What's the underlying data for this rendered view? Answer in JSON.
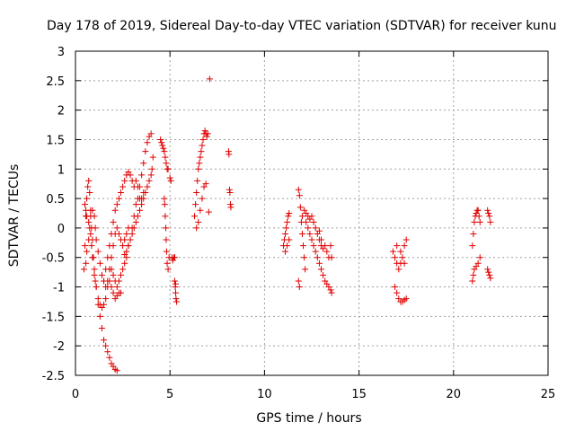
{
  "chart_data": {
    "type": "scatter",
    "title": "Day 178 of 2019, Sidereal Day-to-day VTEC variation (SDTVAR) for receiver kunu",
    "xlabel": "GPS time / hours",
    "ylabel": "SDTVAR / TECUs",
    "xlim": [
      0,
      25
    ],
    "ylim": [
      -2.5,
      3
    ],
    "grid": true,
    "x_ticks": [
      0,
      5,
      10,
      15,
      20,
      25
    ],
    "x_tick_labels": [
      "0",
      "5",
      "10",
      "15",
      "20",
      "25"
    ],
    "y_ticks": [
      -2.5,
      -2,
      -1.5,
      -1,
      -0.5,
      0,
      0.5,
      1,
      1.5,
      2,
      2.5,
      3
    ],
    "y_tick_labels": [
      "-2.5",
      "-2",
      "-1.5",
      "-1",
      "-0.5",
      "0",
      "0.5",
      "1",
      "1.5",
      "2",
      "2.5",
      "3"
    ],
    "marker": "+",
    "marker_color": "#e00000",
    "segments": [
      {
        "name": "arc-a",
        "points": [
          [
            0.45,
            -0.7
          ],
          [
            0.5,
            -0.3
          ],
          [
            0.55,
            0.2
          ],
          [
            0.6,
            0.5
          ],
          [
            0.65,
            0.7
          ],
          [
            0.7,
            0.8
          ],
          [
            0.75,
            0.6
          ],
          [
            0.8,
            0.3
          ],
          [
            0.85,
            0.0
          ],
          [
            0.9,
            -0.2
          ],
          [
            0.95,
            -0.5
          ],
          [
            1.0,
            -0.7
          ],
          [
            1.05,
            -0.9
          ],
          [
            1.1,
            -1.0
          ],
          [
            1.2,
            -1.2
          ],
          [
            1.3,
            -1.3
          ],
          [
            1.4,
            -1.35
          ],
          [
            1.5,
            -1.3
          ],
          [
            1.6,
            -1.2
          ],
          [
            1.7,
            -1.0
          ],
          [
            1.8,
            -0.9
          ],
          [
            1.9,
            -1.0
          ],
          [
            2.0,
            -1.1
          ],
          [
            2.1,
            -1.2
          ],
          [
            2.2,
            -1.15
          ],
          [
            2.3,
            -1.1
          ],
          [
            2.4,
            -1.1
          ]
        ]
      },
      {
        "name": "arc-b",
        "points": [
          [
            0.5,
            0.4
          ],
          [
            0.55,
            0.3
          ],
          [
            0.6,
            0.2
          ],
          [
            0.7,
            0.1
          ],
          [
            0.8,
            0.2
          ],
          [
            0.9,
            0.3
          ],
          [
            1.0,
            0.2
          ],
          [
            1.05,
            0.0
          ],
          [
            1.1,
            -0.2
          ],
          [
            1.2,
            -0.4
          ],
          [
            1.3,
            -0.6
          ],
          [
            1.4,
            -0.8
          ],
          [
            1.5,
            -0.9
          ],
          [
            1.6,
            -1.0
          ],
          [
            1.7,
            -0.9
          ],
          [
            1.8,
            -0.7
          ],
          [
            1.9,
            -0.5
          ],
          [
            2.0,
            -0.3
          ],
          [
            2.1,
            -0.1
          ],
          [
            2.2,
            0.0
          ],
          [
            2.3,
            -0.1
          ],
          [
            2.4,
            -0.2
          ],
          [
            2.5,
            -0.3
          ],
          [
            2.6,
            -0.2
          ],
          [
            2.7,
            -0.1
          ],
          [
            2.8,
            0.0
          ]
        ]
      },
      {
        "name": "arc-c",
        "points": [
          [
            0.55,
            -0.6
          ],
          [
            0.6,
            -0.4
          ],
          [
            0.7,
            -0.2
          ],
          [
            0.75,
            0.0
          ],
          [
            0.8,
            -0.1
          ],
          [
            0.85,
            -0.3
          ],
          [
            0.9,
            -0.5
          ],
          [
            1.0,
            -0.8
          ],
          [
            1.1,
            -1.0
          ],
          [
            1.2,
            -1.3
          ],
          [
            1.3,
            -1.5
          ],
          [
            1.4,
            -1.7
          ],
          [
            1.5,
            -1.9
          ],
          [
            1.6,
            -2.0
          ],
          [
            1.7,
            -2.1
          ],
          [
            1.8,
            -2.2
          ],
          [
            1.9,
            -2.3
          ],
          [
            2.0,
            -2.35
          ],
          [
            2.1,
            -2.4
          ],
          [
            2.2,
            -2.42
          ]
        ]
      },
      {
        "name": "arc-d",
        "points": [
          [
            1.5,
            -0.9
          ],
          [
            1.6,
            -0.7
          ],
          [
            1.7,
            -0.5
          ],
          [
            1.8,
            -0.3
          ],
          [
            1.9,
            -0.1
          ],
          [
            2.0,
            0.1
          ],
          [
            2.1,
            0.3
          ],
          [
            2.2,
            0.4
          ],
          [
            2.3,
            0.5
          ],
          [
            2.4,
            0.6
          ],
          [
            2.5,
            0.7
          ],
          [
            2.6,
            0.8
          ],
          [
            2.7,
            0.9
          ],
          [
            2.8,
            0.95
          ],
          [
            2.9,
            0.9
          ],
          [
            3.0,
            0.8
          ],
          [
            3.1,
            0.7
          ],
          [
            3.2,
            0.8
          ],
          [
            3.3,
            0.7
          ],
          [
            3.4,
            0.5
          ],
          [
            3.5,
            0.5
          ],
          [
            3.6,
            0.6
          ]
        ]
      },
      {
        "name": "arc-e",
        "points": [
          [
            1.9,
            -0.7
          ],
          [
            2.0,
            -0.8
          ],
          [
            2.1,
            -0.9
          ],
          [
            2.2,
            -1.0
          ],
          [
            2.3,
            -0.9
          ],
          [
            2.4,
            -0.8
          ],
          [
            2.5,
            -0.7
          ],
          [
            2.6,
            -0.6
          ],
          [
            2.7,
            -0.5
          ],
          [
            2.8,
            -0.3
          ],
          [
            2.9,
            -0.2
          ],
          [
            3.0,
            0.0
          ],
          [
            3.1,
            0.2
          ],
          [
            3.2,
            0.4
          ],
          [
            3.3,
            0.5
          ],
          [
            3.4,
            0.7
          ],
          [
            3.5,
            0.9
          ],
          [
            3.6,
            1.1
          ],
          [
            3.7,
            1.3
          ],
          [
            3.8,
            1.45
          ],
          [
            3.9,
            1.55
          ],
          [
            4.0,
            1.6
          ]
        ]
      },
      {
        "name": "arc-f",
        "points": [
          [
            2.6,
            -0.45
          ],
          [
            2.7,
            -0.4
          ],
          [
            2.8,
            -0.3
          ],
          [
            2.9,
            -0.2
          ],
          [
            3.0,
            -0.1
          ],
          [
            3.1,
            0.0
          ],
          [
            3.2,
            0.1
          ],
          [
            3.3,
            0.2
          ],
          [
            3.4,
            0.3
          ],
          [
            3.5,
            0.4
          ],
          [
            3.6,
            0.5
          ],
          [
            3.7,
            0.6
          ],
          [
            3.8,
            0.7
          ],
          [
            3.9,
            0.8
          ],
          [
            4.0,
            0.9
          ],
          [
            4.05,
            1.0
          ],
          [
            4.1,
            1.2
          ]
        ]
      },
      {
        "name": "arc-g",
        "points": [
          [
            4.5,
            1.5
          ],
          [
            4.55,
            1.45
          ],
          [
            4.6,
            1.4
          ],
          [
            4.65,
            1.35
          ],
          [
            4.7,
            1.3
          ],
          [
            4.75,
            1.2
          ],
          [
            4.8,
            1.1
          ],
          [
            4.85,
            1.0
          ],
          [
            4.9,
            1.0
          ],
          [
            4.7,
            0.5
          ],
          [
            4.72,
            0.4
          ],
          [
            4.75,
            0.2
          ],
          [
            4.78,
            0.0
          ],
          [
            4.8,
            -0.2
          ],
          [
            4.82,
            -0.4
          ],
          [
            4.85,
            -0.6
          ],
          [
            4.9,
            -0.7
          ],
          [
            4.95,
            -0.5
          ]
        ]
      },
      {
        "name": "arc-h",
        "points": [
          [
            5.0,
            0.85
          ],
          [
            5.05,
            0.8
          ],
          [
            5.1,
            -0.5
          ],
          [
            5.15,
            -0.55
          ],
          [
            5.2,
            -0.5
          ],
          [
            5.25,
            -0.9
          ],
          [
            5.28,
            -1.0
          ],
          [
            5.3,
            -1.1
          ],
          [
            5.32,
            -1.2
          ],
          [
            5.35,
            -1.25
          ],
          [
            5.3,
            -0.95
          ],
          [
            5.25,
            -0.5
          ]
        ]
      },
      {
        "name": "arc-i",
        "points": [
          [
            6.3,
            0.2
          ],
          [
            6.35,
            0.4
          ],
          [
            6.4,
            0.6
          ],
          [
            6.45,
            0.8
          ],
          [
            6.5,
            1.0
          ],
          [
            6.55,
            1.1
          ],
          [
            6.6,
            1.2
          ],
          [
            6.65,
            1.3
          ],
          [
            6.7,
            1.4
          ],
          [
            6.75,
            1.5
          ],
          [
            6.8,
            1.6
          ],
          [
            6.85,
            1.65
          ],
          [
            6.9,
            1.6
          ],
          [
            6.95,
            1.55
          ],
          [
            7.0,
            1.6
          ],
          [
            6.4,
            0.0
          ],
          [
            6.5,
            0.1
          ],
          [
            6.6,
            0.3
          ],
          [
            6.7,
            0.5
          ],
          [
            6.8,
            0.7
          ],
          [
            6.9,
            0.75
          ],
          [
            7.05,
            0.27
          ],
          [
            7.1,
            2.53
          ]
        ]
      },
      {
        "name": "arc-j",
        "points": [
          [
            8.1,
            1.3
          ],
          [
            8.12,
            1.25
          ],
          [
            8.15,
            0.65
          ],
          [
            8.17,
            0.6
          ],
          [
            8.2,
            0.4
          ],
          [
            8.22,
            0.35
          ]
        ]
      },
      {
        "name": "arc-k",
        "points": [
          [
            11.0,
            -0.3
          ],
          [
            11.05,
            -0.2
          ],
          [
            11.1,
            -0.1
          ],
          [
            11.15,
            0.0
          ],
          [
            11.2,
            0.1
          ],
          [
            11.25,
            0.2
          ],
          [
            11.3,
            0.25
          ],
          [
            11.1,
            -0.4
          ],
          [
            11.2,
            -0.3
          ],
          [
            11.3,
            -0.2
          ]
        ]
      },
      {
        "name": "arc-l",
        "points": [
          [
            11.8,
            0.65
          ],
          [
            11.85,
            0.55
          ],
          [
            11.9,
            0.35
          ],
          [
            11.95,
            0.1
          ],
          [
            12.0,
            -0.1
          ],
          [
            12.05,
            -0.3
          ],
          [
            12.1,
            -0.5
          ],
          [
            12.15,
            -0.7
          ],
          [
            11.8,
            -0.9
          ],
          [
            11.85,
            -1.0
          ],
          [
            12.0,
            0.2
          ],
          [
            12.1,
            0.3
          ],
          [
            12.2,
            0.1
          ],
          [
            12.3,
            0.0
          ],
          [
            12.4,
            -0.1
          ],
          [
            12.5,
            -0.2
          ],
          [
            12.6,
            -0.3
          ],
          [
            12.7,
            -0.4
          ],
          [
            12.8,
            -0.5
          ],
          [
            12.9,
            -0.6
          ],
          [
            13.0,
            -0.7
          ],
          [
            13.1,
            -0.8
          ],
          [
            13.2,
            -0.9
          ],
          [
            13.3,
            -0.95
          ],
          [
            13.4,
            -1.0
          ],
          [
            13.5,
            -1.05
          ],
          [
            13.55,
            -1.1
          ]
        ]
      },
      {
        "name": "arc-m",
        "points": [
          [
            12.2,
            0.25
          ],
          [
            12.3,
            0.2
          ],
          [
            12.4,
            0.15
          ],
          [
            12.5,
            0.2
          ],
          [
            12.6,
            0.1
          ],
          [
            12.7,
            0.0
          ],
          [
            12.8,
            -0.1
          ],
          [
            12.9,
            -0.2
          ],
          [
            13.0,
            -0.3
          ],
          [
            13.1,
            -0.35
          ],
          [
            13.2,
            -0.3
          ],
          [
            13.3,
            -0.4
          ],
          [
            13.4,
            -0.5
          ],
          [
            13.5,
            -0.3
          ],
          [
            13.55,
            -0.5
          ],
          [
            13.0,
            -0.2
          ],
          [
            12.9,
            -0.05
          ]
        ]
      },
      {
        "name": "arc-n",
        "points": [
          [
            16.8,
            -0.4
          ],
          [
            16.9,
            -0.5
          ],
          [
            17.0,
            -0.6
          ],
          [
            17.1,
            -0.7
          ],
          [
            17.2,
            -0.6
          ],
          [
            17.3,
            -0.5
          ],
          [
            17.4,
            -0.3
          ],
          [
            17.5,
            -0.2
          ],
          [
            17.0,
            -0.3
          ],
          [
            17.2,
            -0.4
          ],
          [
            17.4,
            -0.6
          ],
          [
            16.9,
            -1.0
          ],
          [
            17.0,
            -1.1
          ],
          [
            17.1,
            -1.2
          ],
          [
            17.2,
            -1.25
          ],
          [
            17.3,
            -1.25
          ],
          [
            17.4,
            -1.22
          ],
          [
            17.5,
            -1.2
          ]
        ]
      },
      {
        "name": "arc-o",
        "points": [
          [
            21.0,
            -0.3
          ],
          [
            21.05,
            -0.1
          ],
          [
            21.1,
            0.1
          ],
          [
            21.15,
            0.2
          ],
          [
            21.2,
            0.25
          ],
          [
            21.25,
            0.3
          ],
          [
            21.3,
            0.3
          ],
          [
            21.35,
            0.2
          ],
          [
            21.4,
            0.1
          ],
          [
            21.0,
            -0.9
          ],
          [
            21.05,
            -0.8
          ],
          [
            21.1,
            -0.7
          ],
          [
            21.2,
            -0.65
          ],
          [
            21.3,
            -0.6
          ],
          [
            21.4,
            -0.5
          ]
        ]
      },
      {
        "name": "arc-p",
        "points": [
          [
            21.8,
            0.3
          ],
          [
            21.85,
            0.25
          ],
          [
            21.9,
            0.2
          ],
          [
            21.95,
            0.1
          ],
          [
            21.8,
            -0.7
          ],
          [
            21.85,
            -0.75
          ],
          [
            21.9,
            -0.8
          ],
          [
            21.95,
            -0.85
          ]
        ]
      }
    ]
  }
}
